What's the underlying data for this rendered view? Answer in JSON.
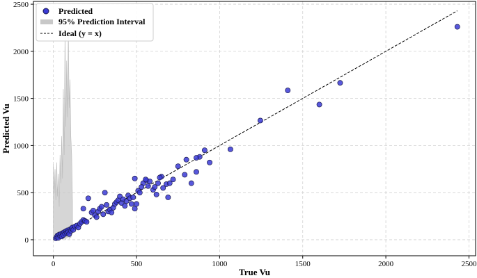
{
  "chart_data": {
    "type": "scatter",
    "xlabel": "True Vu",
    "ylabel": "Predicted Vu",
    "xlim": [
      -120,
      2540
    ],
    "ylim": [
      -170,
      2530
    ],
    "xticks": [
      0,
      500,
      1000,
      1500,
      2000,
      2500
    ],
    "yticks": [
      0,
      500,
      1000,
      1500,
      2000,
      2500
    ],
    "grid": true,
    "legend": {
      "placement": "top-left",
      "entries": [
        "Predicted",
        "95% Prediction Interval",
        "Ideal (y = x)"
      ]
    },
    "colors": {
      "points": "#3b3bd6",
      "point_edge": "#1a1a4a",
      "interval": "#c8c8c8",
      "ideal_line": "#000000",
      "grid": "#d0d0d0"
    },
    "ideal_line": {
      "x": [
        0,
        2430
      ],
      "y": [
        0,
        2430
      ]
    },
    "series": [
      {
        "name": "Predicted",
        "points": [
          [
            15,
            15
          ],
          [
            20,
            30
          ],
          [
            25,
            45
          ],
          [
            30,
            20
          ],
          [
            35,
            55
          ],
          [
            40,
            40
          ],
          [
            45,
            60
          ],
          [
            50,
            35
          ],
          [
            55,
            70
          ],
          [
            60,
            50
          ],
          [
            65,
            80
          ],
          [
            70,
            65
          ],
          [
            75,
            90
          ],
          [
            80,
            75
          ],
          [
            85,
            100
          ],
          [
            90,
            85
          ],
          [
            95,
            60
          ],
          [
            100,
            110
          ],
          [
            105,
            95
          ],
          [
            110,
            120
          ],
          [
            115,
            130
          ],
          [
            120,
            105
          ],
          [
            130,
            140
          ],
          [
            140,
            150
          ],
          [
            150,
            130
          ],
          [
            160,
            170
          ],
          [
            170,
            190
          ],
          [
            180,
            210
          ],
          [
            190,
            200
          ],
          [
            200,
            190
          ],
          [
            180,
            330
          ],
          [
            210,
            440
          ],
          [
            230,
            290
          ],
          [
            240,
            310
          ],
          [
            250,
            260
          ],
          [
            260,
            240
          ],
          [
            270,
            300
          ],
          [
            280,
            330
          ],
          [
            290,
            350
          ],
          [
            300,
            270
          ],
          [
            310,
            500
          ],
          [
            320,
            370
          ],
          [
            330,
            300
          ],
          [
            340,
            320
          ],
          [
            350,
            290
          ],
          [
            360,
            340
          ],
          [
            370,
            380
          ],
          [
            380,
            400
          ],
          [
            390,
            420
          ],
          [
            400,
            460
          ],
          [
            410,
            390
          ],
          [
            420,
            430
          ],
          [
            430,
            360
          ],
          [
            440,
            410
          ],
          [
            450,
            470
          ],
          [
            460,
            440
          ],
          [
            470,
            380
          ],
          [
            480,
            450
          ],
          [
            490,
            330
          ],
          [
            500,
            380
          ],
          [
            510,
            520
          ],
          [
            520,
            500
          ],
          [
            540,
            600
          ],
          [
            560,
            630
          ],
          [
            570,
            570
          ],
          [
            580,
            620
          ],
          [
            600,
            530
          ],
          [
            620,
            480
          ],
          [
            630,
            600
          ],
          [
            650,
            670
          ],
          [
            660,
            550
          ],
          [
            680,
            590
          ],
          [
            700,
            600
          ],
          [
            720,
            640
          ],
          [
            750,
            780
          ],
          [
            790,
            690
          ],
          [
            800,
            850
          ],
          [
            830,
            600
          ],
          [
            860,
            720
          ],
          [
            880,
            880
          ],
          [
            910,
            950
          ],
          [
            940,
            820
          ],
          [
            490,
            650
          ],
          [
            530,
            560
          ],
          [
            555,
            640
          ],
          [
            610,
            560
          ],
          [
            640,
            660
          ],
          [
            690,
            450
          ],
          [
            860,
            870
          ],
          [
            1065,
            960
          ],
          [
            1245,
            1265
          ],
          [
            1410,
            1585
          ],
          [
            1600,
            1435
          ],
          [
            1725,
            1665
          ],
          [
            2430,
            2260
          ]
        ]
      },
      {
        "name": "95% Prediction Interval",
        "band": [
          [
            0,
            50,
            800
          ],
          [
            5,
            20,
            500
          ],
          [
            10,
            30,
            750
          ],
          [
            15,
            0,
            420
          ],
          [
            20,
            60,
            820
          ],
          [
            25,
            10,
            460
          ],
          [
            30,
            40,
            700
          ],
          [
            35,
            0,
            350
          ],
          [
            40,
            70,
            900
          ],
          [
            45,
            20,
            600
          ],
          [
            50,
            90,
            1100
          ],
          [
            55,
            0,
            650
          ],
          [
            60,
            30,
            1600
          ],
          [
            65,
            10,
            900
          ],
          [
            70,
            50,
            2200
          ],
          [
            75,
            0,
            1200
          ],
          [
            80,
            40,
            1900
          ],
          [
            85,
            20,
            1300
          ],
          [
            90,
            60,
            2250
          ],
          [
            95,
            10,
            1400
          ],
          [
            100,
            50,
            1700
          ],
          [
            105,
            20,
            1100
          ],
          [
            110,
            70,
            900
          ],
          [
            115,
            60,
            400
          ]
        ]
      }
    ]
  }
}
